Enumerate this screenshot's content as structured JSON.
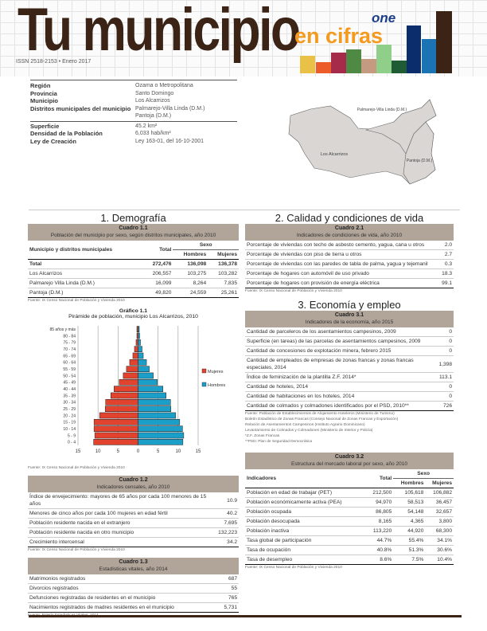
{
  "header": {
    "title_main": "Tu municipio",
    "title_accent": "en cifras",
    "issn": "ISSN 2518-2153 • Enero 2017",
    "logo_text": "one",
    "colors": {
      "brown": "#3b2416",
      "orange": "#f39a1f"
    },
    "deco_bars": [
      "#e8c146",
      "#ec5b2a",
      "#a62a4a",
      "#4e8a43",
      "#c49a80",
      "#8fcf8a",
      "#1f5b33",
      "#0b2d6b",
      "#1b73b3",
      "#3b2416"
    ]
  },
  "info": {
    "rows": [
      {
        "label": "Región",
        "value": "Ozama o Metropolitana"
      },
      {
        "label": "Provincia",
        "value": "Santo Domingo"
      },
      {
        "label": "Municipio",
        "value": "Los Alcarrizos"
      },
      {
        "label": "Distritos municipales del municipio",
        "value": "Palmarejo-Villa Linda (D.M.)"
      },
      {
        "label": "",
        "value": "Pantoja (D.M.)"
      }
    ],
    "rows2": [
      {
        "label": "Superficie",
        "value": "45.2 km²"
      },
      {
        "label": "Densidad de la Población",
        "value": "6,033 hab/km²"
      },
      {
        "label": "Ley de Creación",
        "value": "Ley 163-01, del 16-10-2001"
      }
    ]
  },
  "map": {
    "labels": [
      "Palmarejo-Villa Linda (D.M.)",
      "Los Alcarrizos",
      "Pantoja (D.M.)"
    ]
  },
  "demografia": {
    "title": "1. Demografía",
    "c11": {
      "label": "Cuadro 1.1",
      "subtitle": "Población del municipio por sexo, según distritos municipales, año 2010",
      "h": [
        "Municipio y distritos municipales",
        "Total",
        "Sexo",
        "Hombres",
        "Mujeres"
      ],
      "rows": [
        [
          "Total",
          "272,476",
          "136,098",
          "136,378"
        ],
        [
          "Los Alcarrizos",
          "206,557",
          "103,275",
          "103,282"
        ],
        [
          "Palmarejo Villa Linda (D.M.)",
          "16,099",
          "8,264",
          "7,835"
        ],
        [
          "Pantoja (D.M.)",
          "49,820",
          "24,559",
          "25,261"
        ]
      ],
      "source": "Fuente: IX Censo Nacional de Población y Vivienda 2010"
    },
    "chart": {
      "label": "Gráfico 1.1",
      "title": "Pirámide de población, municipio Los Alcarrizos, 2010",
      "source": "Fuente: IX Censo Nacional de Población y Vivienda 2010"
    },
    "c12": {
      "label": "Cuadro 1.2",
      "subtitle": "Indicadores censales, año 2010",
      "rows": [
        [
          "Índice de envejecimiento: mayores de 65 años por cada 100 menores de 15 años",
          "10.9"
        ],
        [
          "Menores de cinco años por cada 100 mujeres en edad fértil",
          "40.2"
        ],
        [
          "Población residente nacida en el extranjero",
          "7,695"
        ],
        [
          "Población residente nacida en otro municipio",
          "132,223"
        ],
        [
          "Crecimiento intercensal",
          "34.2"
        ]
      ],
      "source": "Fuente: IX Censo Nacional de Población y Vivienda 2010"
    },
    "c13": {
      "label": "Cuadro 1.3",
      "subtitle": "Estadísticas vitales, año 2014",
      "rows": [
        [
          "Matrimonios registrados",
          "687"
        ],
        [
          "Divorcios registrados",
          "55"
        ],
        [
          "Defunciones registradas de residentes en el municipio",
          "765"
        ],
        [
          "Nacimientos registrados de madres residentes en el municipio",
          "5,731"
        ]
      ],
      "source": "Fuente: Boletín Estadísticas Vitales, 2014"
    }
  },
  "calidad": {
    "title": "2. Calidad y condiciones de vida",
    "c21": {
      "label": "Cuadro 2.1",
      "subtitle": "Indicadores de condiciones de vida, año 2010",
      "rows": [
        [
          "Porcentaje de viviendas con techo de asbesto cemento, yagua, cana u otros",
          "2.0"
        ],
        [
          "Porcentaje de viviendas con piso de tierra u otros",
          "2.7"
        ],
        [
          "Porcentaje de viviendas con las paredes de tabla de palma, yagua y tejemanil",
          "0.3"
        ],
        [
          "Porcentaje de hogares con automóvil de uso privado",
          "18.3"
        ],
        [
          "Porcentaje de hogares con provisión de energía eléctrica",
          "99.1"
        ]
      ],
      "source": "Fuente: IX Censo Nacional de Población y Vivienda 2010"
    }
  },
  "economia": {
    "title": "3. Economía y empleo",
    "c31": {
      "label": "Cuadro 3.1",
      "subtitle": "Indicadores de la economía, año 2015",
      "rows": [
        [
          "Cantidad de parceleros de los asentamientos campesinos, 2009",
          "0"
        ],
        [
          "Superficie (en tareas) de las parcelas de asentamientos campesinos, 2009",
          "0"
        ],
        [
          "Cantidad de concesiones de explotación minera, febrero 2015",
          "0"
        ],
        [
          "Cantidad de empleados de empresas de zonas francas y zonas francas especiales, 2014",
          "1,398"
        ],
        [
          "Índice de feminización de la plantilla Z.F. 2014*",
          "113.1"
        ],
        [
          "Cantidad de hoteles, 2014",
          "0"
        ],
        [
          "Cantidad de habitaciones en los hoteles, 2014",
          "0"
        ],
        [
          "Cantidad de colmados y colmadones identificados por el PSD, 2010**",
          "726"
        ]
      ],
      "notes": [
        "Fuente: Población de Establecimientos de Alojamiento Hoteleros (Ministerio de Turismo)",
        "Boletín Estadístico de Zonas Francas (Consejo Nacional de Zonas Francas y Exportación)",
        "Relación de Asentamientos Campesinos (Instituto Agrario Dominicano)",
        "Levantamiento de Colmados y Colmadones (Ministerio de Interior y Policía)",
        "*Z.F. Zonas Francas",
        "**PSD: Plan de Seguridad Democrática"
      ]
    },
    "c32": {
      "label": "Cuadro 3.2",
      "subtitle": "Estructura del mercado laboral por sexo, año 2010",
      "h": [
        "Indicadores",
        "Total",
        "Sexo",
        "Hombres",
        "Mujeres"
      ],
      "rows": [
        [
          "Población en edad de trabajar (PET)",
          "212,500",
          "105,618",
          "106,882"
        ],
        [
          "Población económicamente activa (PEA)",
          "94,970",
          "58,513",
          "36,457"
        ],
        [
          "Población ocupada",
          "86,805",
          "54,148",
          "32,657"
        ],
        [
          "Población desocupada",
          "8,165",
          "4,365",
          "3,800"
        ],
        [
          "Población inactiva",
          "113,220",
          "44,920",
          "68,300"
        ],
        [
          "Tasa global de participación",
          "44.7%",
          "55.4%",
          "34.1%"
        ],
        [
          "Tasa de ocupación",
          "40.8%",
          "51.3%",
          "30.6%"
        ],
        [
          "Tasa de desempleo",
          "8.6%",
          "7.5%",
          "10.4%"
        ]
      ],
      "source": "Fuente: IX Censo Nacional de Población y Vivienda 2010"
    }
  },
  "chart_data": {
    "type": "bar",
    "orientation": "horizontal",
    "subtype": "population-pyramid",
    "title": "Pirámide de población, municipio Los Alcarrizos, 2010",
    "categories": [
      "0 - 4",
      "5 - 9",
      "10 - 14",
      "15 - 19",
      "20 - 24",
      "25 - 29",
      "30 - 34",
      "35 - 39",
      "40 - 44",
      "45 - 49",
      "50 - 54",
      "55 - 59",
      "60 - 64",
      "65 - 69",
      "70 - 74",
      "75 - 79",
      "80 - 84",
      "85 años y más"
    ],
    "series": [
      {
        "name": "Mujeres",
        "color": "#e2432f",
        "values": [
          11.1,
          10.8,
          11.0,
          11.0,
          9.6,
          8.2,
          8.1,
          6.8,
          6.0,
          4.7,
          3.7,
          2.9,
          2.1,
          1.3,
          0.9,
          0.5,
          0.3,
          0.3
        ]
      },
      {
        "name": "Hombres",
        "color": "#1b9fc8",
        "values": [
          11.2,
          11.4,
          11.1,
          10.4,
          9.4,
          8.2,
          8.1,
          7.0,
          6.2,
          4.8,
          3.8,
          2.8,
          2.1,
          1.3,
          1.0,
          0.6,
          0.4,
          0.3
        ]
      }
    ],
    "xticks": [
      "15",
      "10",
      "5",
      "0",
      "5",
      "10",
      "15"
    ],
    "xlim": [
      -15,
      15
    ],
    "grid": true,
    "legend": "right"
  },
  "footer_color": "#3b2416"
}
